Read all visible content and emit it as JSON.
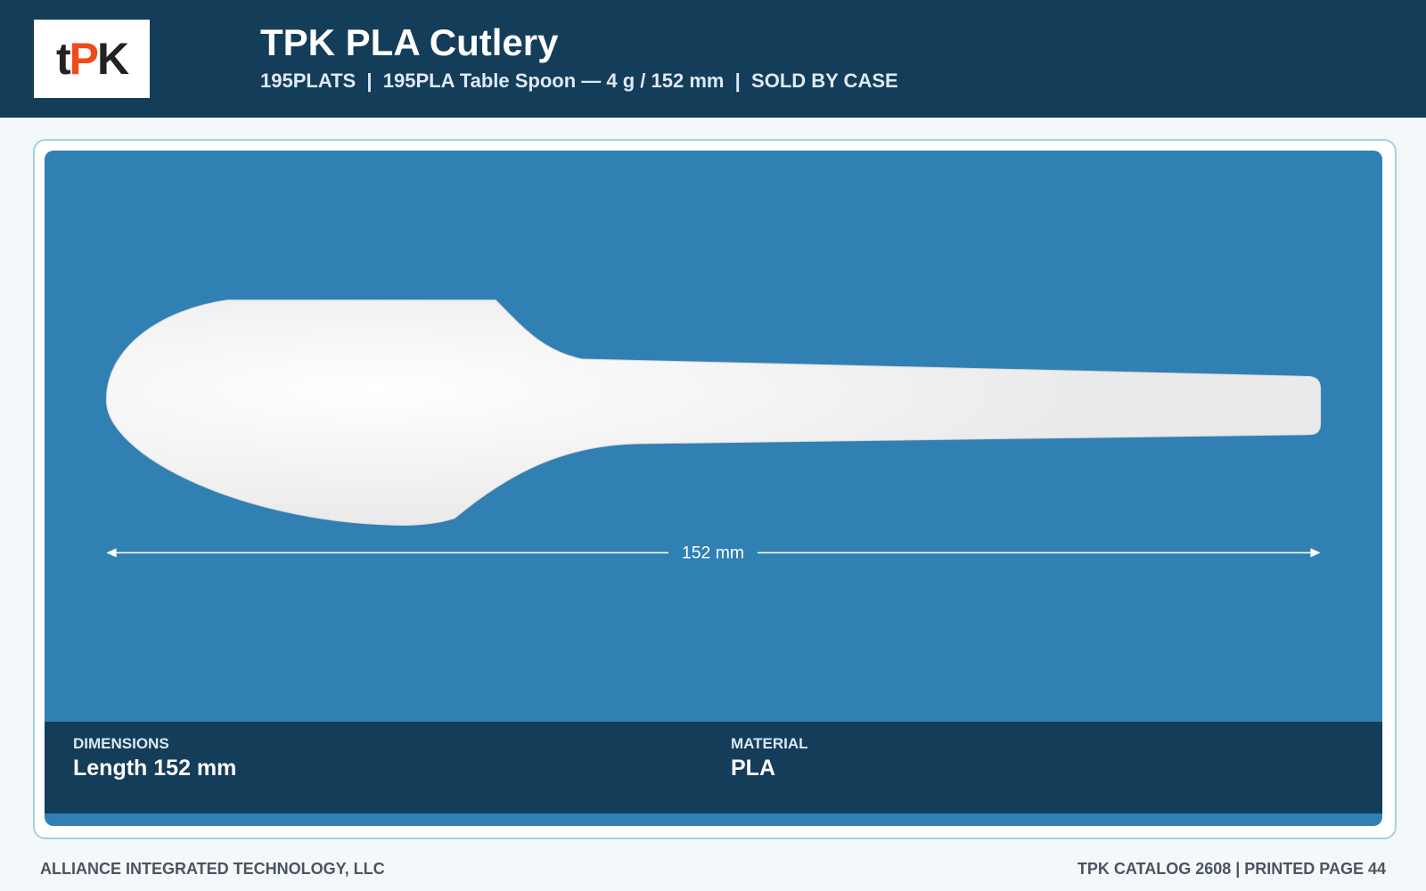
{
  "header": {
    "logo": [
      "t",
      "PK"
    ],
    "title": "TPK PLA Cutlery",
    "subtitle": "195PLATS  |  195PLA Table Spoon — 4 g / 152 mm  |  SOLD BY CASE"
  },
  "product": {
    "dimension_label": "152 mm"
  },
  "specs": [
    {
      "label": "DIMENSIONS",
      "value": "Length 152 mm"
    },
    {
      "label": "MATERIAL",
      "value": "PLA"
    }
  ],
  "footer": {
    "left": "ALLIANCE INTEGRATED TECHNOLOGY, LLC",
    "right": "TPK CATALOG 2608 | PRINTED PAGE 44"
  }
}
